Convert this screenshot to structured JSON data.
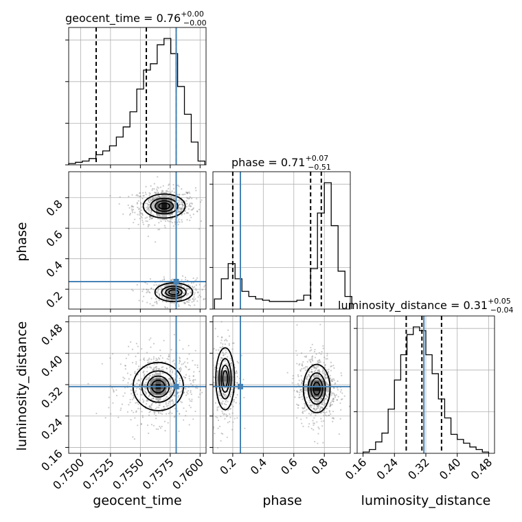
{
  "chart_data": {
    "type": "corner",
    "parameters": [
      "geocent_time",
      "phase",
      "luminosity_distance"
    ],
    "truths": {
      "geocent_time": 0.758,
      "phase": 0.25,
      "luminosity_distance": 0.315
    },
    "truth_color": "#4682b4",
    "ranges": {
      "geocent_time": [
        0.749,
        0.7605
      ],
      "phase": [
        0.07,
        0.97
      ],
      "luminosity_distance": [
        0.145,
        0.495
      ]
    },
    "grid": true,
    "titles": [
      {
        "param": "geocent_time",
        "label": "geocent_time = 0.76",
        "sup": "+0.00",
        "sub": "−0.00"
      },
      {
        "param": "phase",
        "label": "phase = 0.71",
        "sup": "+0.07",
        "sub": "−0.51"
      },
      {
        "param": "luminosity_distance",
        "label": "luminosity_distance = 0.31",
        "sup": "+0.05",
        "sub": "−0.04"
      }
    ],
    "axis_labels": {
      "x": [
        "geocent_time",
        "phase",
        "luminosity_distance"
      ],
      "y": [
        "phase",
        "luminosity_distance"
      ]
    },
    "ticks": {
      "geocent_time": {
        "values": [
          0.75,
          0.7525,
          0.755,
          0.7575,
          0.76
        ],
        "labels": [
          "0.7500",
          "0.7525",
          "0.7550",
          "0.7575",
          "0.7600"
        ]
      },
      "phase": {
        "values": [
          0.2,
          0.4,
          0.6,
          0.8
        ],
        "labels": [
          "0.2",
          "0.4",
          "0.6",
          "0.8"
        ]
      },
      "luminosity_distance": {
        "values": [
          0.16,
          0.24,
          0.32,
          0.4,
          0.48
        ],
        "labels": [
          "0.16",
          "0.24",
          "0.32",
          "0.40",
          "0.48"
        ]
      }
    },
    "marginals": {
      "geocent_time": {
        "edges_start": 0.749,
        "edges_step": 0.00057,
        "counts": [
          1,
          2,
          3,
          5,
          8,
          11,
          15,
          22,
          30,
          42,
          60,
          75,
          80,
          95,
          100,
          88,
          62,
          40,
          18,
          3
        ],
        "quantiles": [
          0.7513,
          0.7555,
          0.758
        ]
      },
      "phase": {
        "edges_start": 0.08,
        "edges_step": 0.045,
        "counts": [
          8,
          24,
          36,
          24,
          14,
          10,
          8,
          7,
          6,
          6,
          6,
          6,
          7,
          11,
          32,
          76,
          100,
          66,
          30,
          10
        ],
        "quantiles": [
          0.2,
          0.71,
          0.78
        ]
      },
      "luminosity_distance": {
        "edges_start": 0.16,
        "edges_step": 0.016,
        "counts": [
          1,
          3,
          9,
          16,
          35,
          58,
          78,
          94,
          100,
          97,
          78,
          63,
          43,
          28,
          15,
          11,
          8,
          5,
          3,
          1
        ],
        "quantiles": [
          0.27,
          0.31,
          0.36
        ]
      }
    },
    "joint_modes": [
      {
        "x": "geocent_time",
        "y": "phase",
        "modes": [
          {
            "cx": 0.757,
            "cy": 0.745,
            "sx": 0.001,
            "sy": 0.045,
            "w": 1.0
          },
          {
            "cx": 0.7578,
            "cy": 0.18,
            "sx": 0.0009,
            "sy": 0.035,
            "w": 0.55
          }
        ]
      },
      {
        "x": "geocent_time",
        "y": "luminosity_distance",
        "modes": [
          {
            "cx": 0.7565,
            "cy": 0.315,
            "sx": 0.0012,
            "sy": 0.035,
            "w": 1.0
          }
        ]
      },
      {
        "x": "phase",
        "y": "luminosity_distance",
        "modes": [
          {
            "cx": 0.15,
            "cy": 0.335,
            "sx": 0.035,
            "sy": 0.045,
            "w": 0.55
          },
          {
            "cx": 0.75,
            "cy": 0.31,
            "sx": 0.05,
            "sy": 0.035,
            "w": 1.0
          }
        ]
      }
    ],
    "contour_levels": [
      0.85,
      0.55,
      0.3,
      0.12
    ]
  }
}
